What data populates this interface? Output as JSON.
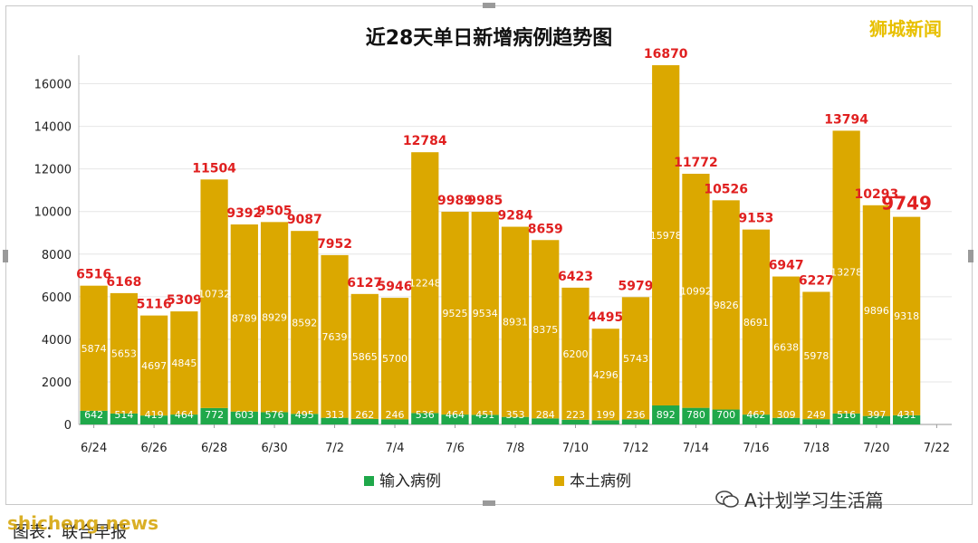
{
  "brand": "狮城新闻",
  "wechat_account": "A计划学习生活篇",
  "caption": "图表：联合早报",
  "watermark": "shicheng.news",
  "colors": {
    "imported": "#1fa84a",
    "local": "#dba800",
    "total_label": "#e02020",
    "bar_label": "#ffffff",
    "grid": "#e6e6e6"
  },
  "chart_data": {
    "type": "bar",
    "stacked": true,
    "title": "近28天单日新增病例趋势图",
    "categories": [
      "6/24",
      "6/25",
      "6/26",
      "6/27",
      "6/28",
      "6/29",
      "6/30",
      "7/1",
      "7/2",
      "7/3",
      "7/4",
      "7/5",
      "7/6",
      "7/7",
      "7/8",
      "7/9",
      "7/10",
      "7/11",
      "7/12",
      "7/13",
      "7/14",
      "7/15",
      "7/16",
      "7/17",
      "7/18",
      "7/19",
      "7/20",
      "7/21"
    ],
    "x_tick_labels": [
      "6/24",
      "6/26",
      "6/28",
      "6/30",
      "7/2",
      "7/4",
      "7/6",
      "7/8",
      "7/10",
      "7/12",
      "7/14",
      "7/16",
      "7/18",
      "7/20",
      "7/22"
    ],
    "series": [
      {
        "name": "输入病例",
        "values": [
          642,
          514,
          419,
          464,
          772,
          603,
          576,
          495,
          313,
          262,
          246,
          536,
          464,
          451,
          353,
          284,
          223,
          199,
          236,
          892,
          780,
          700,
          462,
          309,
          249,
          516,
          397,
          431
        ]
      },
      {
        "name": "本土病例",
        "values": [
          5874,
          5653,
          4697,
          4845,
          10732,
          8789,
          8929,
          8592,
          7639,
          5865,
          5700,
          12248,
          9525,
          9534,
          8931,
          8375,
          6200,
          4296,
          5743,
          15978,
          10992,
          9826,
          8691,
          6638,
          5978,
          13278,
          9896,
          9318
        ]
      }
    ],
    "totals": [
      6516,
      6168,
      5116,
      5309,
      11504,
      9392,
      9505,
      9087,
      7952,
      6127,
      5946,
      12784,
      9989,
      9985,
      9284,
      8659,
      6423,
      4495,
      5979,
      16870,
      11772,
      10526,
      9153,
      6947,
      6227,
      13794,
      10293,
      9749
    ],
    "ylim": [
      0,
      17000
    ],
    "yticks": [
      0,
      2000,
      4000,
      6000,
      8000,
      10000,
      12000,
      14000,
      16000
    ],
    "grid": true,
    "legend_position": "bottom"
  }
}
